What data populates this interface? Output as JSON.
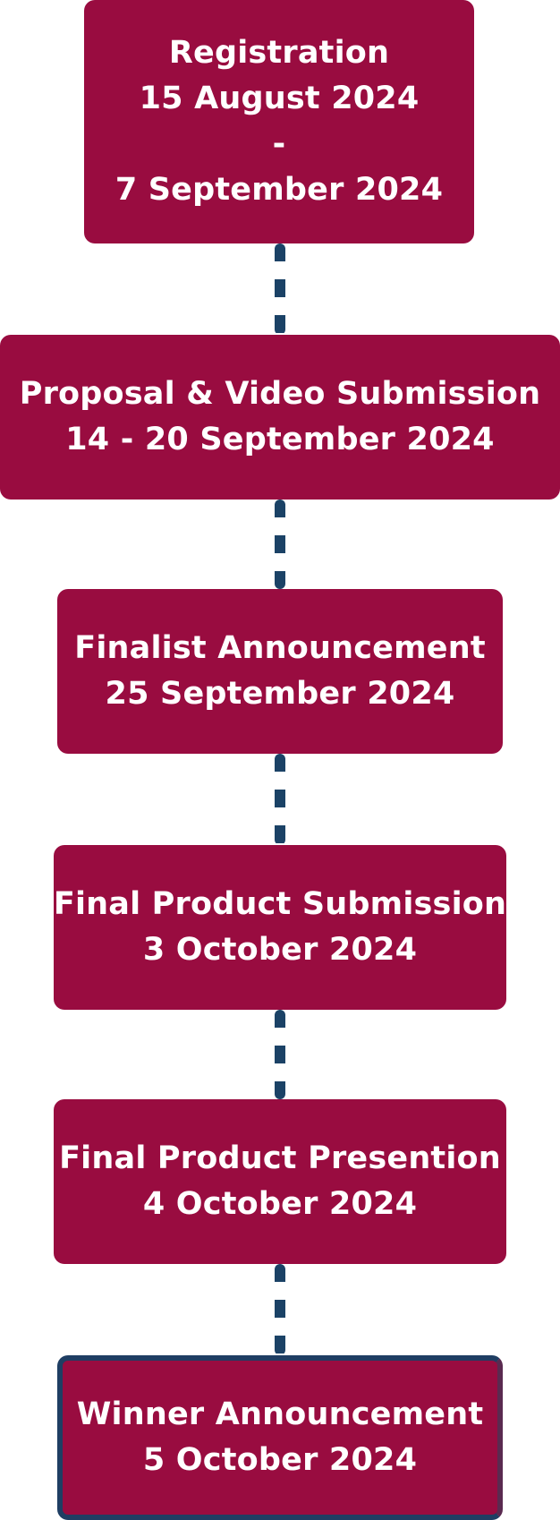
{
  "timeline": {
    "accent_color": "#990c40",
    "connector_color": "#1b4266",
    "steps": [
      {
        "lines": [
          "Registration",
          "15 August 2024",
          "-",
          "7 September 2024"
        ]
      },
      {
        "lines": [
          "Proposal & Video Submission",
          "14 - 20 September 2024"
        ]
      },
      {
        "lines": [
          "Finalist Announcement",
          "25 September 2024"
        ]
      },
      {
        "lines": [
          "Final Product Submission",
          "3 October 2024"
        ]
      },
      {
        "lines": [
          "Final Product Presention",
          "4 October 2024"
        ]
      },
      {
        "lines": [
          "Winner Announcement",
          "5 October 2024"
        ]
      }
    ]
  }
}
